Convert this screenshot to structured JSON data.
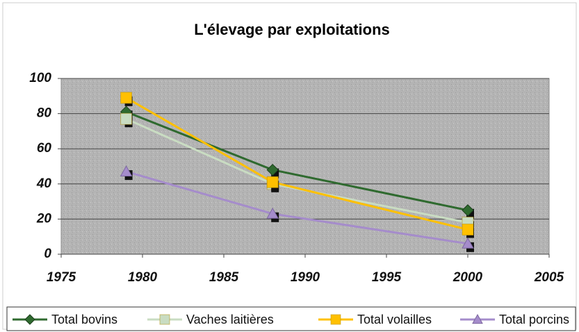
{
  "chart_data": {
    "type": "line",
    "title": "L'élevage par exploitations",
    "x": [
      1979,
      1988,
      2000
    ],
    "series": [
      {
        "name": "Total bovins",
        "color": "#2f6a2f",
        "marker": "diamond",
        "values": [
          81,
          48,
          25
        ]
      },
      {
        "name": "Vaches laitières",
        "color": "#c9dcc2",
        "marker": "square",
        "values": [
          77,
          40,
          18
        ]
      },
      {
        "name": "Total volailles",
        "color": "#ffc000",
        "marker": "square",
        "values": [
          89,
          41,
          14
        ]
      },
      {
        "name": "Total porcins",
        "color": "#a58ccb",
        "marker": "triangle",
        "values": [
          47,
          23,
          6
        ]
      }
    ],
    "xlim": [
      1975,
      2005
    ],
    "xticks": [
      1975,
      1980,
      1985,
      1990,
      1995,
      2000,
      2005
    ],
    "ylim": [
      0,
      100
    ],
    "yticks": [
      0,
      20,
      40,
      60,
      80,
      100
    ],
    "grid": true,
    "legend": "bottom"
  }
}
